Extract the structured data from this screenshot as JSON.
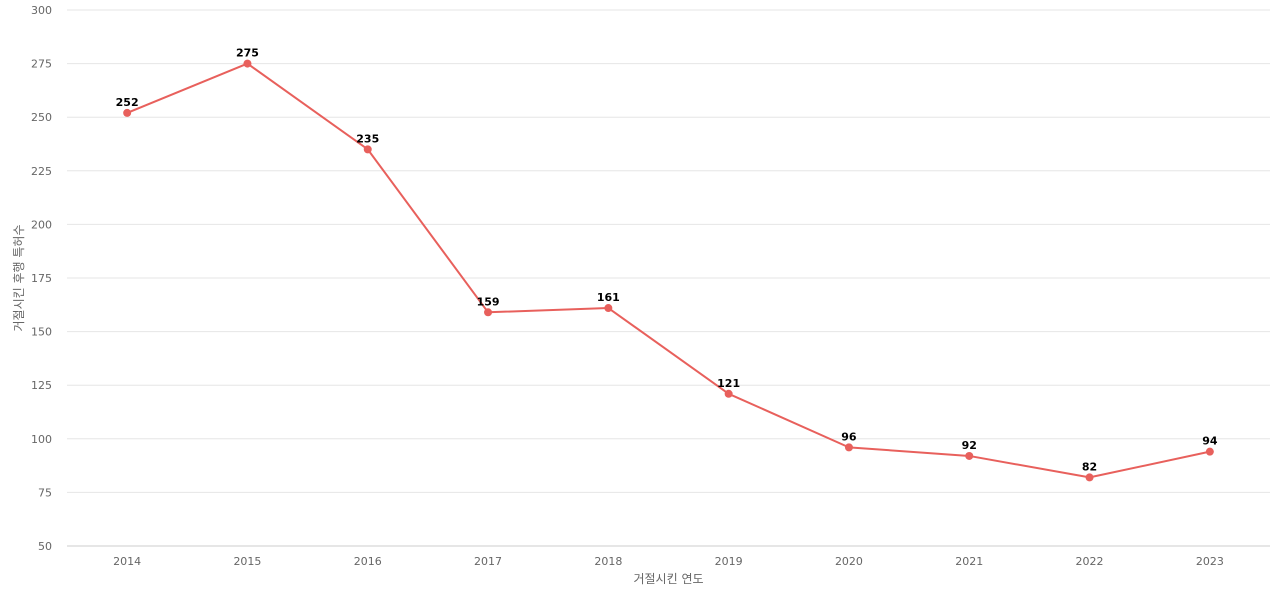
{
  "chart_data": {
    "type": "line",
    "title": "",
    "xlabel": "거절시킨 연도",
    "ylabel": "거절시킨 후행 특허수",
    "x": [
      "2014",
      "2015",
      "2016",
      "2017",
      "2018",
      "2019",
      "2020",
      "2021",
      "2022",
      "2023"
    ],
    "series": [
      {
        "values": [
          252,
          275,
          235,
          159,
          161,
          121,
          96,
          92,
          82,
          94
        ],
        "color": "#e8605c"
      }
    ],
    "ylim": [
      50,
      300
    ],
    "yticks": [
      50,
      75,
      100,
      125,
      150,
      175,
      200,
      225,
      250,
      275,
      300
    ],
    "grid": true,
    "legend": "none",
    "data_labels": true
  }
}
